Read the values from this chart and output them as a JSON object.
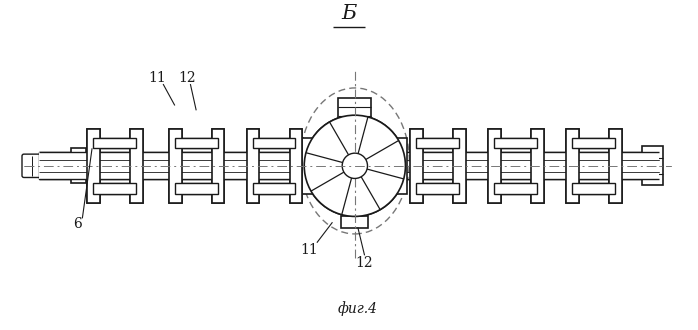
{
  "title": "Б",
  "caption": "фиг.4",
  "label_6": "6",
  "label_11_top_l": "11",
  "label_12_top_l": "12",
  "label_11_bot": "11",
  "label_12_bot": "12",
  "bg_color": "#ffffff",
  "line_color": "#1a1a1a",
  "dash_color": "#777777",
  "fig_width": 6.98,
  "fig_height": 3.3,
  "dpi": 100
}
